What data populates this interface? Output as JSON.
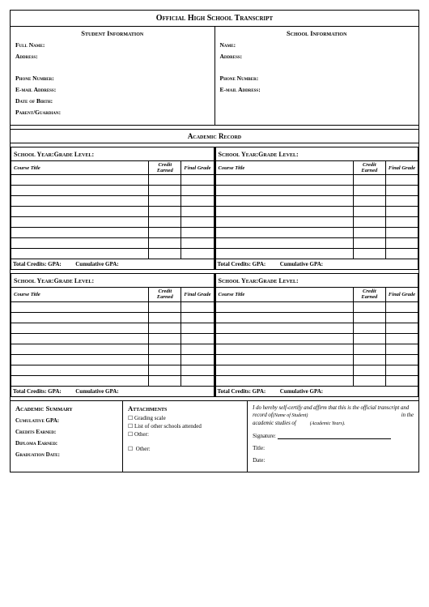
{
  "title": "Official High School Transcript",
  "student": {
    "heading": "Student Information",
    "fields": [
      "Full Name:",
      "Address:",
      "Phone Number:",
      "E-mail Address:",
      "Date of Birth:",
      "Parent/Guardian:"
    ]
  },
  "school": {
    "heading": "School Information",
    "fields": [
      "Name:",
      "Address:",
      "Phone Number:",
      "E-mail Address:"
    ]
  },
  "academic_heading": "Academic Record",
  "block": {
    "year_label": "School Year:Grade Level:",
    "course_header": "Course Title",
    "credit_header": "Credit Earned",
    "grade_header": "Final Grade",
    "totals_credits": "Total Credits: GPA:",
    "totals_cum": "Cumulative GPA:",
    "row_count": 8
  },
  "summary": {
    "heading": "Academic Summary",
    "fields": [
      "Cumulative GPA:",
      "Credits Earned:",
      "Diploma Earned:",
      "Graduation Date:"
    ]
  },
  "attachments": {
    "heading": "Attachments",
    "items": [
      "Grading scale",
      "List of other schools attended",
      "Other:"
    ],
    "other2": "Other:"
  },
  "cert": {
    "line1": "I do hereby self-certify and affirm that this is the official transcript and",
    "line2a": "record of",
    "line2b": "(Name of Student)",
    "line2c": "in the",
    "line3a": "academic studies of",
    "line3b": "(Academic Years).",
    "sig": "Signature:",
    "title": "Title:",
    "date": "Date:"
  }
}
